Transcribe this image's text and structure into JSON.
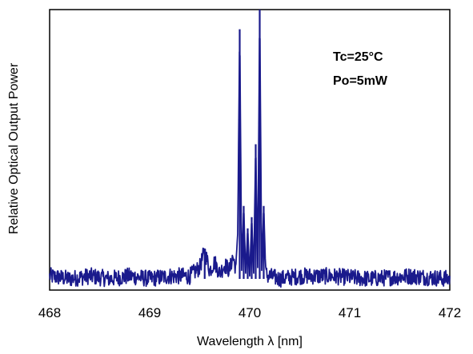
{
  "chart_data": {
    "type": "line",
    "title": "",
    "xlabel": "Wavelength  λ [nm]",
    "ylabel": "Relative Optical Output Power",
    "xlim": [
      468,
      472
    ],
    "ylim": [
      0,
      1
    ],
    "xticks": [
      "468",
      "469",
      "470",
      "471",
      "472"
    ],
    "grid": false,
    "legend": "none",
    "annotations": [
      "Tc=25°C",
      "Po=5mW"
    ],
    "line_color": "#1a1a8c",
    "series": [
      {
        "x": [
          468.0,
          468.2,
          468.4,
          468.6,
          468.8,
          469.0,
          469.2,
          469.4,
          469.5,
          469.55,
          469.6,
          469.65,
          469.7,
          469.75,
          469.8,
          469.83,
          469.86,
          469.88,
          469.9,
          469.92,
          469.94,
          469.96,
          469.98,
          470.0,
          470.02,
          470.04,
          470.06,
          470.08,
          470.1,
          470.12,
          470.14,
          470.16,
          470.18,
          470.2,
          470.3,
          470.5,
          470.8,
          471.2,
          471.6,
          472.0
        ],
        "values": [
          0.05,
          0.04,
          0.05,
          0.04,
          0.05,
          0.04,
          0.05,
          0.05,
          0.08,
          0.14,
          0.07,
          0.1,
          0.06,
          0.09,
          0.07,
          0.12,
          0.08,
          0.2,
          0.93,
          0.07,
          0.3,
          0.06,
          0.22,
          0.05,
          0.26,
          0.06,
          0.52,
          0.08,
          1.0,
          0.07,
          0.3,
          0.06,
          0.05,
          0.05,
          0.04,
          0.05,
          0.05,
          0.04,
          0.05,
          0.04
        ]
      }
    ]
  }
}
